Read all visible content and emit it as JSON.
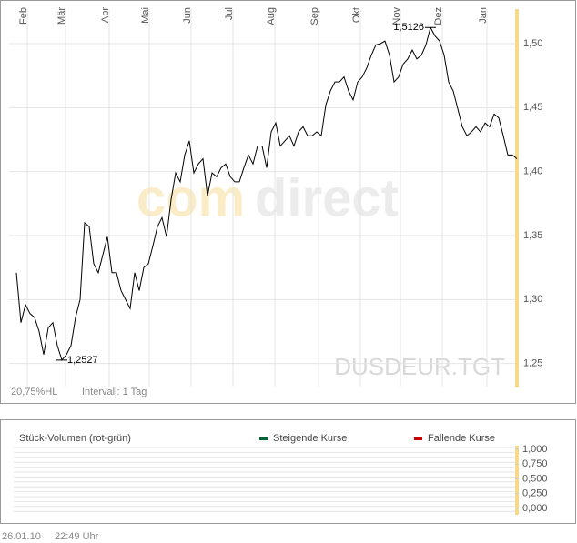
{
  "chart_data": [
    {
      "type": "line",
      "color": "#000000",
      "grid": true,
      "values": [
        1.321,
        1.282,
        1.296,
        1.289,
        1.286,
        1.275,
        1.257,
        1.278,
        1.282,
        1.264,
        1.2527,
        1.257,
        1.264,
        1.286,
        1.3,
        1.36,
        1.357,
        1.328,
        1.321,
        1.335,
        1.349,
        1.321,
        1.321,
        1.307,
        1.3,
        1.293,
        1.321,
        1.307,
        1.325,
        1.328,
        1.342,
        1.357,
        1.364,
        1.349,
        1.378,
        1.399,
        1.392,
        1.413,
        1.424,
        1.399,
        1.406,
        1.41,
        1.381,
        1.399,
        1.396,
        1.403,
        1.406,
        1.396,
        1.392,
        1.392,
        1.403,
        1.413,
        1.406,
        1.42,
        1.42,
        1.403,
        1.431,
        1.438,
        1.42,
        1.424,
        1.428,
        1.42,
        1.431,
        1.435,
        1.428,
        1.428,
        1.431,
        1.428,
        1.452,
        1.463,
        1.47,
        1.47,
        1.474,
        1.463,
        1.456,
        1.47,
        1.474,
        1.481,
        1.491,
        1.499,
        1.5,
        1.502,
        1.491,
        1.47,
        1.474,
        1.484,
        1.488,
        1.495,
        1.488,
        1.491,
        1.499,
        1.5126,
        1.506,
        1.502,
        1.491,
        1.47,
        1.463,
        1.449,
        1.435,
        1.428,
        1.431,
        1.435,
        1.431,
        1.438,
        1.435,
        1.445,
        1.442,
        1.428,
        1.413,
        1.413,
        1.41
      ],
      "xticks": [
        {
          "value": 2.4,
          "label": "Feb"
        },
        {
          "value": 10.8,
          "label": "Mär"
        },
        {
          "value": 20.4,
          "label": "Apr"
        },
        {
          "value": 29.2,
          "label": "Mai"
        },
        {
          "value": 38.4,
          "label": "Jun"
        },
        {
          "value": 47.6,
          "label": "Jul"
        },
        {
          "value": 56.8,
          "label": "Aug"
        },
        {
          "value": 66.4,
          "label": "Sep"
        },
        {
          "value": 75.6,
          "label": "Okt"
        },
        {
          "value": 84.4,
          "label": "Nov"
        },
        {
          "value": 93.6,
          "label": "Dez"
        },
        {
          "value": 103.4,
          "label": "Jan"
        }
      ],
      "ylim": [
        1.232,
        1.527
      ],
      "yticks": [
        {
          "value": 1.25,
          "label": "1,25"
        },
        {
          "value": 1.3,
          "label": "1,30"
        },
        {
          "value": 1.35,
          "label": "1,35"
        },
        {
          "value": 1.4,
          "label": "1,40"
        },
        {
          "value": 1.45,
          "label": "1,45"
        },
        {
          "value": 1.5,
          "label": "1,50"
        }
      ],
      "annotations": [
        {
          "label": "1,2527",
          "value": 1.2527
        },
        {
          "label": "1,5126",
          "value": 1.5126
        }
      ],
      "watermark": [
        "com",
        "direct"
      ],
      "symbol": "DUSDEUR.TGT",
      "range_info": "20,75%HL",
      "interval": "Intervall: 1 Tag"
    },
    {
      "type": "volume",
      "title": "Stück-Volumen (rot-grün)",
      "grid": true,
      "series": [
        {
          "name": "Steigende Kurse",
          "color": "#006633",
          "values": []
        },
        {
          "name": "Fallende Kurse",
          "color": "#cc0000",
          "values": []
        }
      ],
      "ylim": [
        0,
        1
      ],
      "yticks": [
        {
          "value": 1,
          "label": "1,000"
        },
        {
          "value": 0.75,
          "label": "0,750"
        },
        {
          "value": 0.5,
          "label": "0,500"
        },
        {
          "value": 0.25,
          "label": "0,250"
        },
        {
          "value": 0,
          "label": "0,000"
        }
      ]
    }
  ],
  "footer": {
    "date": "26.01.10",
    "time": "22:49 Uhr"
  }
}
